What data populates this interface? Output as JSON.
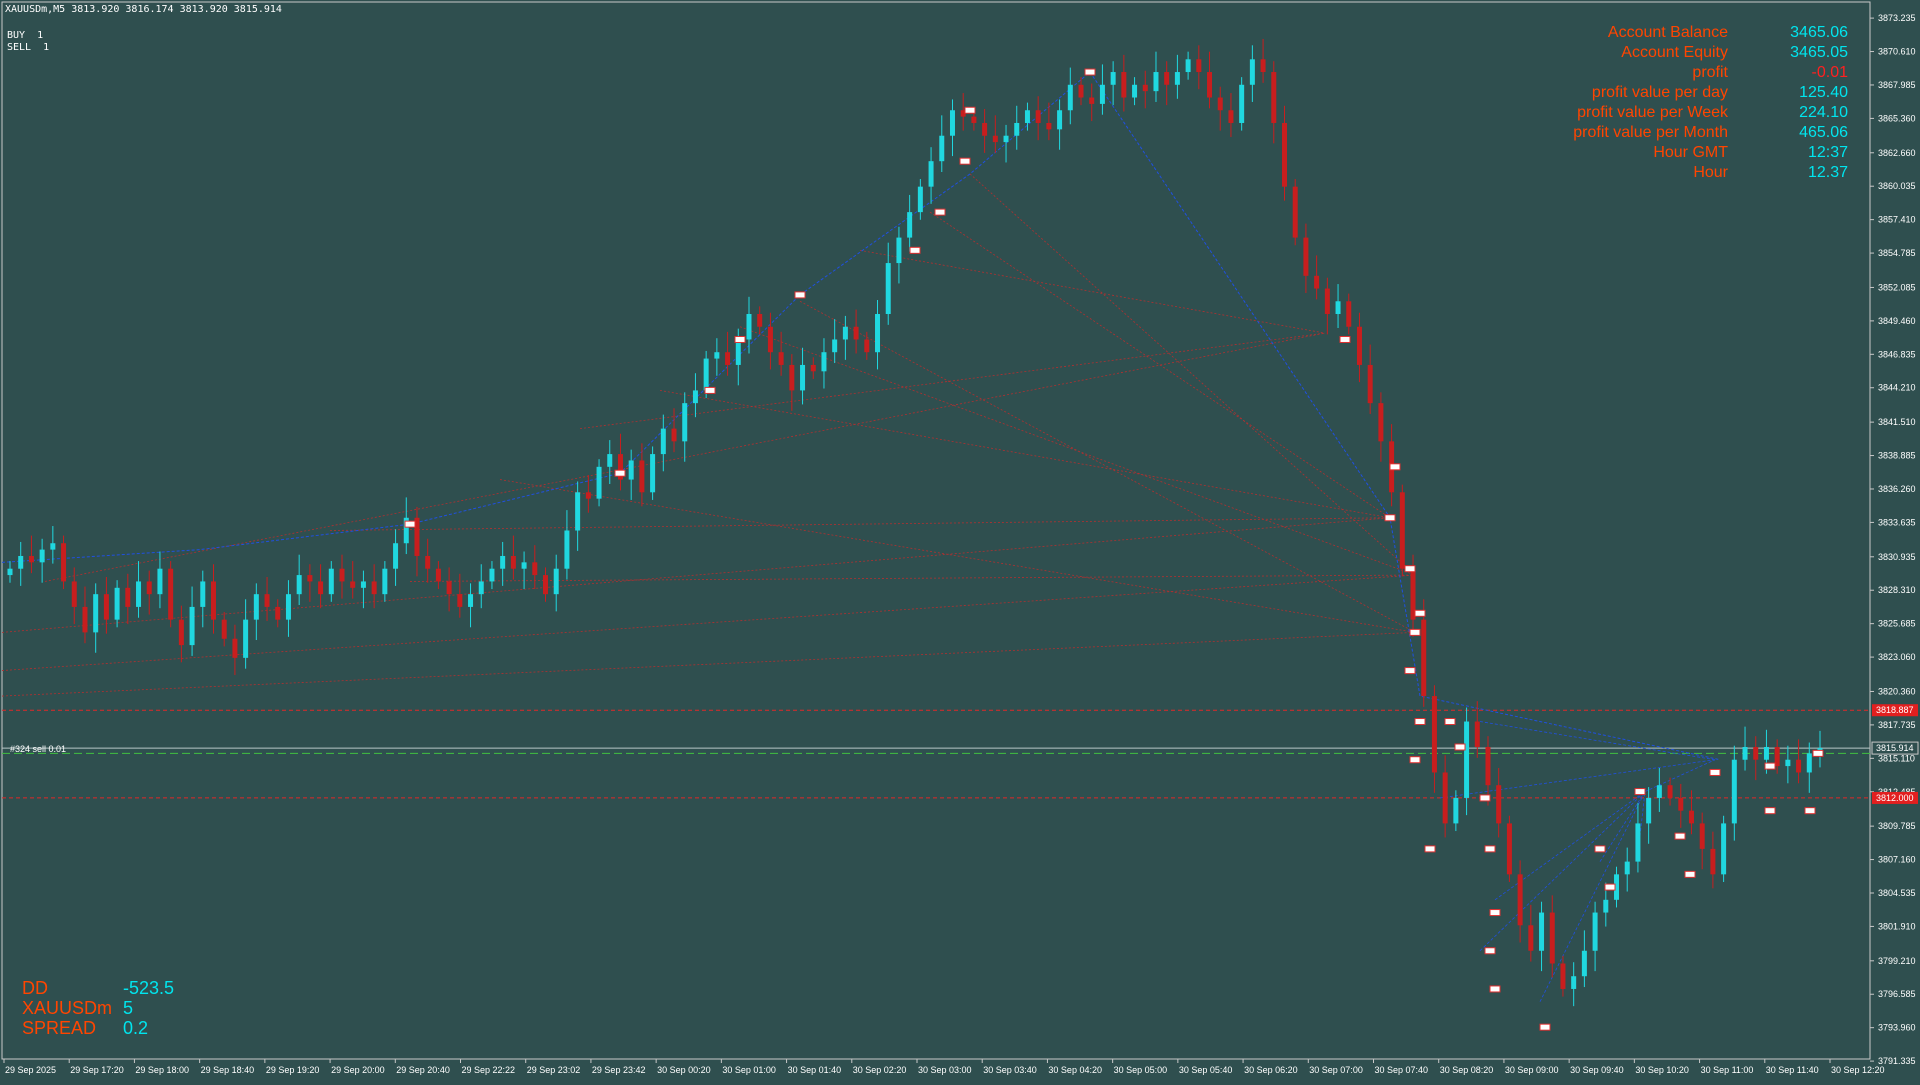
{
  "header": {
    "symbol_line": "XAUUSDm,M5  3813.920 3816.174 3813.920 3815.914",
    "buy_label": "BUY",
    "buy_value": "1",
    "sell_label": "SELL",
    "sell_value": "1"
  },
  "account_panel": [
    {
      "label": "Account Balance",
      "value": "3465.06"
    },
    {
      "label": "Account Equity",
      "value": "3465.05"
    },
    {
      "label": "profit",
      "value": "-0.01"
    },
    {
      "label": "profit value per day",
      "value": "125.40"
    },
    {
      "label": "profit value per Week",
      "value": "224.10"
    },
    {
      "label": "profit value per Month",
      "value": "465.06"
    },
    {
      "label": "Hour GMT",
      "value": "12:37"
    },
    {
      "label": "Hour",
      "value": "12.37"
    }
  ],
  "bottom_panel": [
    {
      "label": "DD",
      "value": "-523.5"
    },
    {
      "label": "XAUUSDm",
      "value": "5"
    },
    {
      "label": "SPREAD",
      "value": "0.2"
    }
  ],
  "order_label": "#324 sell 0.01",
  "colors": {
    "background": "#2f4f4f",
    "bull": "#20d8e0",
    "bear": "#c81e1e",
    "label_orange": "#ff4500",
    "value_cyan": "#00e5ee"
  },
  "chart_data": {
    "type": "candlestick",
    "timeframe": "M5",
    "symbol": "XAUUSDm",
    "price_axis": {
      "min": 3791.5,
      "max": 3874.5,
      "ticks": [
        "3873.235",
        "3870.610",
        "3867.985",
        "3865.360",
        "3862.660",
        "3860.035",
        "3857.410",
        "3854.785",
        "3852.085",
        "3849.460",
        "3846.835",
        "3844.210",
        "3841.510",
        "3838.885",
        "3836.260",
        "3833.635",
        "3830.935",
        "3828.310",
        "3825.685",
        "3823.060",
        "3820.360",
        "3817.735",
        "3815.110",
        "3812.485",
        "3809.785",
        "3807.160",
        "3804.535",
        "3801.910",
        "3799.210",
        "3796.585",
        "3793.960",
        "3791.335"
      ]
    },
    "price_tags": [
      {
        "label": "3818.887",
        "value": 3818.887,
        "color": "#e21f1f"
      },
      {
        "label": "3815.914",
        "value": 3815.914,
        "color": "#2f4f4f"
      },
      {
        "label": "3812.000",
        "value": 3812.0,
        "color": "#e21f1f"
      }
    ],
    "horizontal_lines": {
      "red_upper": 3818.887,
      "current": 3815.914,
      "green_dash": 3815.5,
      "red_lower": 3812.0
    },
    "time_axis": [
      "29 Sep 2025",
      "29 Sep 17:20",
      "29 Sep 18:00",
      "29 Sep 18:40",
      "29 Sep 19:20",
      "29 Sep 20:00",
      "29 Sep 20:40",
      "29 Sep 22:22",
      "29 Sep 23:02",
      "29 Sep 23:42",
      "30 Sep 00:20",
      "30 Sep 01:00",
      "30 Sep 01:40",
      "30 Sep 02:20",
      "30 Sep 03:00",
      "30 Sep 03:40",
      "30 Sep 04:20",
      "30 Sep 05:00",
      "30 Sep 05:40",
      "30 Sep 06:20",
      "30 Sep 07:00",
      "30 Sep 07:40",
      "30 Sep 08:20",
      "30 Sep 09:00",
      "30 Sep 09:40",
      "30 Sep 10:20",
      "30 Sep 11:00",
      "30 Sep 11:40",
      "30 Sep 12:20"
    ],
    "close_path": [
      3830,
      3831,
      3830.5,
      3831.5,
      3832,
      3829,
      3827,
      3825,
      3828,
      3826,
      3828.5,
      3827,
      3829,
      3828,
      3830,
      3826,
      3824,
      3827,
      3829,
      3826,
      3824.5,
      3823,
      3826,
      3828,
      3827,
      3826,
      3828,
      3829.5,
      3829,
      3828,
      3830,
      3829,
      3828.5,
      3829,
      3828,
      3830,
      3832,
      3834,
      3831,
      3830,
      3829,
      3828,
      3827,
      3828,
      3829,
      3830,
      3831,
      3830,
      3830.5,
      3829.5,
      3828,
      3830,
      3833,
      3836,
      3835.5,
      3838,
      3839,
      3837,
      3838.5,
      3836,
      3839,
      3841,
      3840,
      3843,
      3844,
      3846.5,
      3847,
      3846,
      3848,
      3850,
      3849,
      3847,
      3846,
      3844,
      3846,
      3845.5,
      3847,
      3848,
      3849,
      3848,
      3847,
      3850,
      3854,
      3856,
      3858,
      3860,
      3862,
      3864,
      3866,
      3865.5,
      3865,
      3864,
      3863.5,
      3864,
      3865,
      3866,
      3865,
      3864.5,
      3866,
      3868,
      3867,
      3866.5,
      3868,
      3869,
      3867,
      3868,
      3867.5,
      3869,
      3868,
      3869,
      3870,
      3869,
      3867,
      3866,
      3865,
      3868,
      3870,
      3869,
      3865,
      3860,
      3856,
      3853,
      3852,
      3850,
      3851,
      3849,
      3846,
      3843,
      3840,
      3836,
      3830,
      3826,
      3820,
      3814,
      3810,
      3812,
      3818,
      3816,
      3813,
      3810,
      3806,
      3802,
      3800,
      3803,
      3799,
      3797,
      3798,
      3800,
      3803,
      3804,
      3806,
      3807,
      3810,
      3812,
      3813,
      3812,
      3811,
      3810,
      3808,
      3806,
      3810,
      3815,
      3816,
      3815,
      3816,
      3814.5,
      3815,
      3814,
      3815.5,
      3815.914
    ]
  }
}
